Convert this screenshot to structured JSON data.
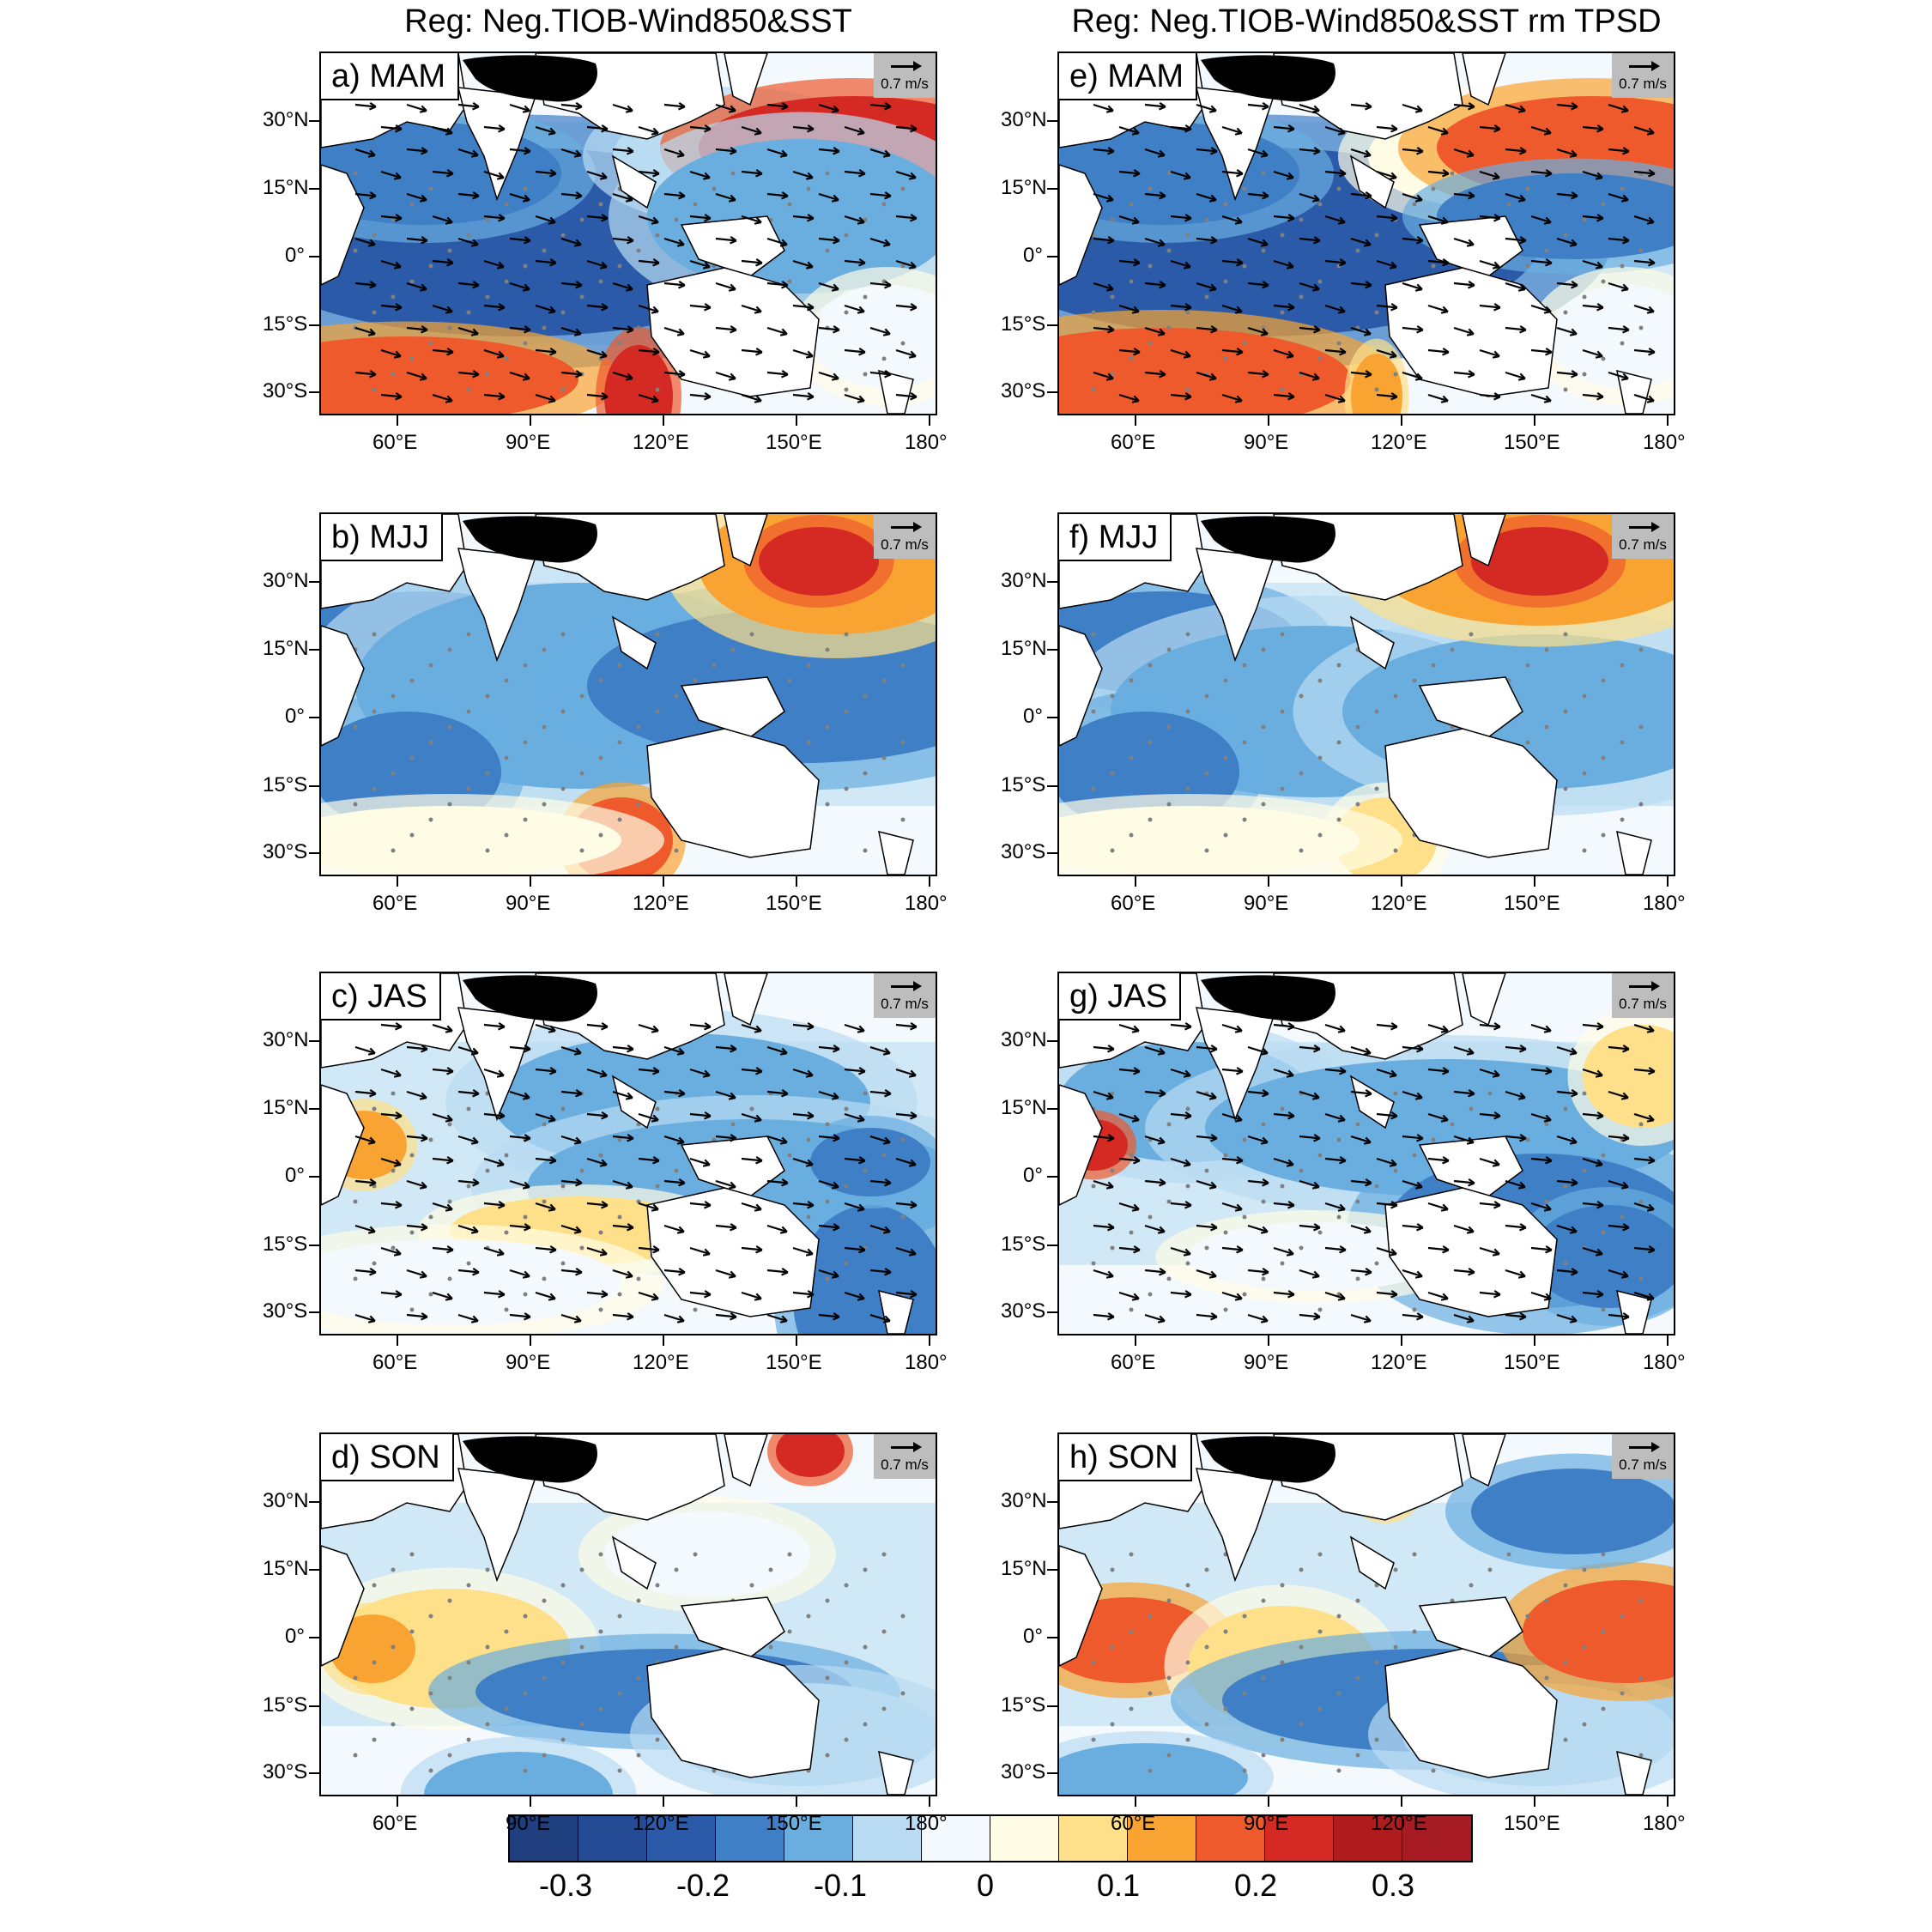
{
  "titles": {
    "left": "Reg: Neg.TIOB-Wind850&SST",
    "right": "Reg: Neg.TIOB-Wind850&SST rm TPSD"
  },
  "reference_vector": "0.7 m/s",
  "lat_labels": [
    "30°N",
    "15°N",
    "0°",
    "15°S",
    "30°S"
  ],
  "lon_labels_left": [
    "60°E",
    "90°E",
    "120°E",
    "150°E",
    "180°"
  ],
  "lon_labels_right": [
    "60°E",
    "90°E",
    "120°E",
    "150°E",
    "180°"
  ],
  "panels": [
    {
      "id": "a",
      "label": "a) MAM"
    },
    {
      "id": "b",
      "label": "b) MJJ"
    },
    {
      "id": "c",
      "label": "c) JAS"
    },
    {
      "id": "d",
      "label": "d) SON"
    },
    {
      "id": "e",
      "label": "e) MAM"
    },
    {
      "id": "f",
      "label": "f) MJJ"
    },
    {
      "id": "g",
      "label": "g) JAS"
    },
    {
      "id": "h",
      "label": "h) SON"
    }
  ],
  "colorbar": {
    "colors": [
      "#1f3f7f",
      "#244b93",
      "#2b5ba8",
      "#3f7fc6",
      "#6aaee0",
      "#b9dcf2",
      "#f4f9fd",
      "#fffce6",
      "#fde089",
      "#f9a432",
      "#ee5a2c",
      "#d52a24",
      "#b01c1e",
      "#a61c22"
    ],
    "labels": [
      "-0.3",
      "-0.2",
      "-0.1",
      "0",
      "0.1",
      "0.2",
      "0.3"
    ]
  },
  "colors": {
    "land": "#ffffff",
    "tibet": "#000000",
    "stipple": "#808080",
    "refbox": "#bdbdbd"
  }
}
